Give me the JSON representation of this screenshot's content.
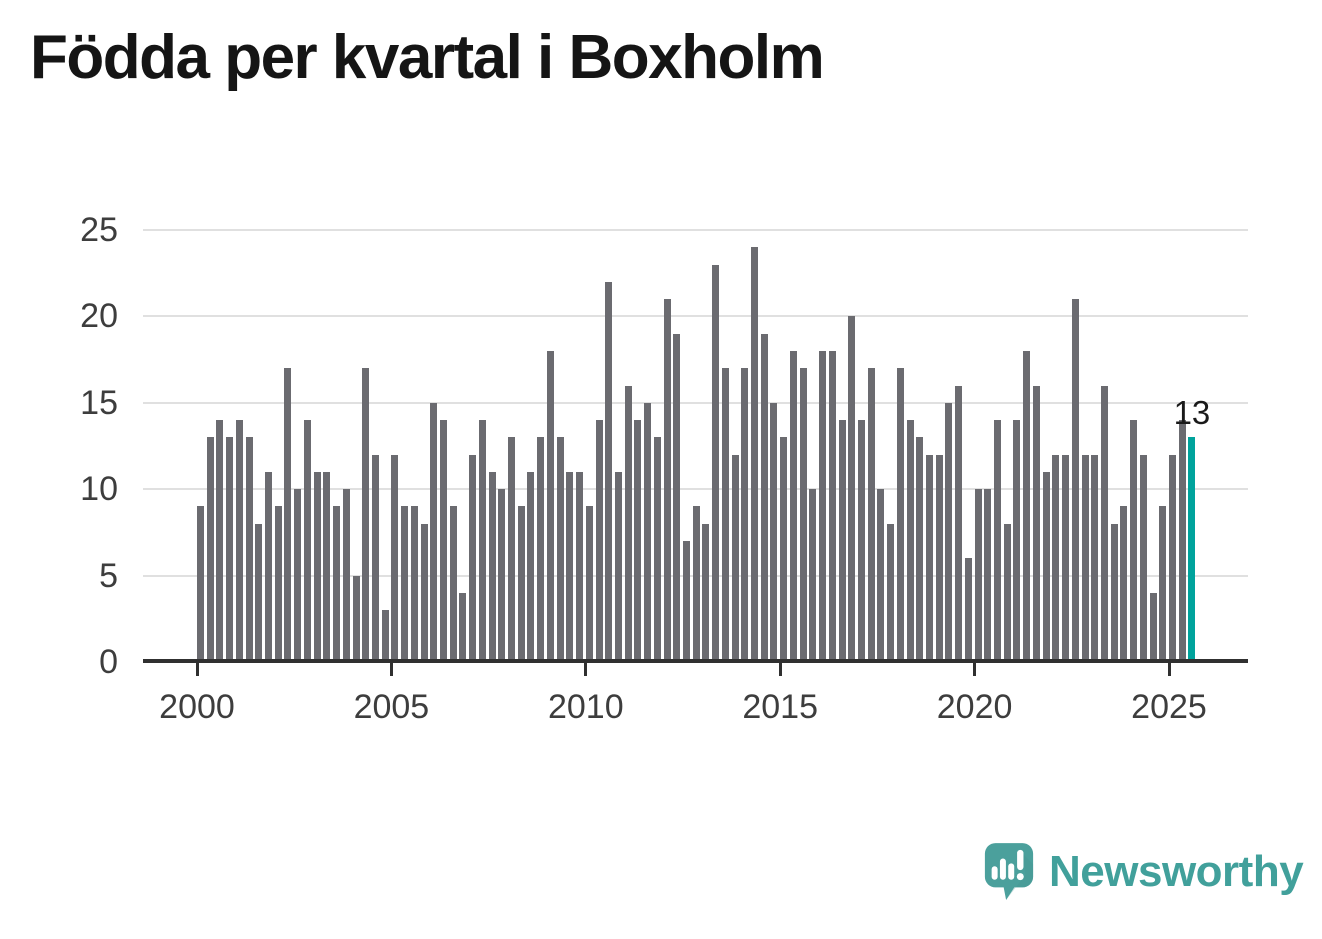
{
  "branding": {
    "wordmark": "Newsworthy",
    "logo_color": "#4ba09c",
    "logo_shade_color": "#43948f",
    "text_color": "#41a09b"
  },
  "chart_data": {
    "type": "bar",
    "title": "Födda per kvartal i Boxholm",
    "x_unit": "quarter",
    "x_start": "2000 Q1",
    "x_end": "2025 Q3",
    "x_tick_labels": [
      "2000",
      "2005",
      "2010",
      "2015",
      "2020",
      "2025"
    ],
    "x_tick_bar_indices": [
      0,
      20,
      40,
      60,
      80,
      100
    ],
    "yticks": [
      0,
      5,
      10,
      15,
      20,
      25
    ],
    "ylim": [
      0,
      25
    ],
    "grid": true,
    "legend": false,
    "values": [
      9,
      13,
      14,
      13,
      14,
      13,
      8,
      11,
      9,
      17,
      10,
      14,
      11,
      11,
      9,
      10,
      5,
      17,
      12,
      3,
      12,
      9,
      9,
      8,
      15,
      14,
      9,
      4,
      12,
      14,
      11,
      10,
      13,
      9,
      11,
      13,
      18,
      13,
      11,
      11,
      9,
      14,
      22,
      11,
      16,
      14,
      15,
      13,
      21,
      19,
      7,
      9,
      8,
      23,
      17,
      12,
      17,
      24,
      19,
      15,
      13,
      18,
      17,
      10,
      18,
      18,
      14,
      20,
      14,
      17,
      10,
      8,
      17,
      14,
      13,
      12,
      12,
      15,
      16,
      6,
      10,
      10,
      14,
      8,
      14,
      18,
      16,
      11,
      12,
      12,
      21,
      12,
      12,
      16,
      8,
      9,
      14,
      12,
      4,
      9,
      12,
      14,
      13
    ],
    "highlight_index": 102,
    "highlight_value_label": "13",
    "colors": {
      "bar": "#6b6b70",
      "highlight": "#00a39c",
      "gridline": "#e0e0e0",
      "axis": "#303030",
      "tick_label": "#3d3d3d",
      "title": "#151515",
      "value_label": "#1a1a1a"
    }
  }
}
